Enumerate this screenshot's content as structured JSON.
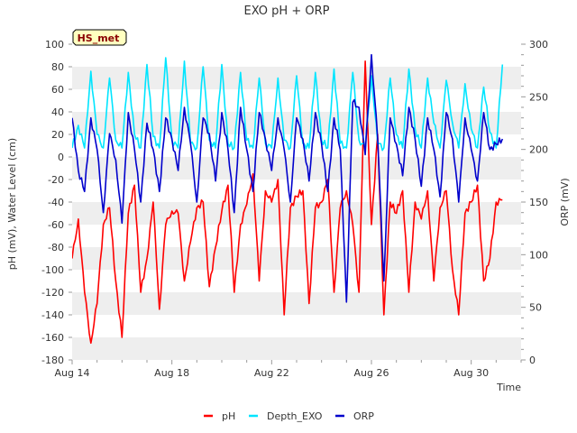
{
  "colors": {
    "pH": "#ff0000",
    "Depth_EXO": "#00e5ff",
    "ORP": "#0000cc",
    "band": "#eeeeee",
    "badge_bg": "#ffffc0"
  },
  "chart_data": {
    "type": "line",
    "title": "EXO pH + ORP",
    "xlabel": "Time",
    "ylabel_left": "pH (mV), Water Level (cm)",
    "ylabel_right": "ORP (mV)",
    "station_label": "HS_met",
    "x_start": "2024-08-14",
    "x_ticks": [
      "Aug 14",
      "Aug 18",
      "Aug 22",
      "Aug 26",
      "Aug 30"
    ],
    "xlim": [
      0,
      18
    ],
    "ylim_left": [
      -180,
      100
    ],
    "ylim_right": [
      0,
      300
    ],
    "yticks_left": [
      -180,
      -160,
      -140,
      -120,
      -100,
      -80,
      -60,
      -40,
      -20,
      0,
      20,
      40,
      60,
      80,
      100
    ],
    "yticks_right": [
      0,
      50,
      100,
      150,
      200,
      250,
      300
    ],
    "legend": {
      "placement": "bottom-center",
      "entries": [
        "pH",
        "Depth_EXO",
        "ORP"
      ]
    },
    "grid": "horizontal bands",
    "series": [
      {
        "name": "pH",
        "axis": "left",
        "x": [
          0.0,
          0.25,
          0.5,
          0.75,
          1.0,
          1.25,
          1.5,
          1.75,
          2.0,
          2.25,
          2.5,
          2.75,
          3.0,
          3.25,
          3.5,
          3.75,
          4.0,
          4.25,
          4.5,
          4.75,
          5.0,
          5.25,
          5.5,
          5.75,
          6.0,
          6.25,
          6.5,
          6.75,
          7.0,
          7.25,
          7.5,
          7.75,
          8.0,
          8.25,
          8.5,
          8.75,
          9.0,
          9.25,
          9.5,
          9.75,
          10.0,
          10.25,
          10.5,
          10.75,
          11.0,
          11.25,
          11.5,
          11.75,
          12.0,
          12.25,
          12.5,
          12.75,
          13.0,
          13.25,
          13.5,
          13.75,
          14.0,
          14.25,
          14.5,
          14.75,
          15.0,
          15.25,
          15.5,
          15.75,
          16.0,
          16.25,
          16.5,
          16.75,
          17.0,
          17.25
        ],
        "values": [
          -90,
          -55,
          -120,
          -165,
          -130,
          -60,
          -45,
          -110,
          -160,
          -50,
          -25,
          -120,
          -90,
          -40,
          -135,
          -60,
          -48,
          -50,
          -110,
          -75,
          -45,
          -40,
          -115,
          -80,
          -48,
          -25,
          -120,
          -60,
          -42,
          -15,
          -110,
          -30,
          -40,
          -20,
          -140,
          -45,
          -35,
          -30,
          -130,
          -45,
          -40,
          -20,
          -120,
          -45,
          -30,
          -60,
          -120,
          85,
          -60,
          20,
          -140,
          -40,
          -50,
          -30,
          -120,
          -40,
          -55,
          -30,
          -110,
          -45,
          -30,
          -100,
          -140,
          -50,
          -40,
          -25,
          -110,
          -90,
          -40,
          -38
        ]
      },
      {
        "name": "Depth_EXO",
        "axis": "left",
        "x": [
          0.0,
          0.25,
          0.5,
          0.75,
          1.0,
          1.25,
          1.5,
          1.75,
          2.0,
          2.25,
          2.5,
          2.75,
          3.0,
          3.25,
          3.5,
          3.75,
          4.0,
          4.25,
          4.5,
          4.75,
          5.0,
          5.25,
          5.5,
          5.75,
          6.0,
          6.25,
          6.5,
          6.75,
          7.0,
          7.25,
          7.5,
          7.75,
          8.0,
          8.25,
          8.5,
          8.75,
          9.0,
          9.25,
          9.5,
          9.75,
          10.0,
          10.25,
          10.5,
          10.75,
          11.0,
          11.25,
          11.5,
          11.75,
          12.0,
          12.25,
          12.5,
          12.75,
          13.0,
          13.25,
          13.5,
          13.75,
          14.0,
          14.25,
          14.5,
          14.75,
          15.0,
          15.25,
          15.5,
          15.75,
          16.0,
          16.25,
          16.5,
          16.75,
          17.0,
          17.25
        ],
        "values": [
          8,
          28,
          8,
          76,
          20,
          8,
          70,
          15,
          8,
          75,
          20,
          8,
          82,
          18,
          8,
          88,
          15,
          8,
          85,
          12,
          8,
          80,
          15,
          8,
          82,
          12,
          8,
          75,
          15,
          8,
          70,
          12,
          8,
          70,
          15,
          8,
          72,
          12,
          8,
          75,
          15,
          8,
          78,
          12,
          8,
          75,
          15,
          8,
          72,
          12,
          8,
          70,
          20,
          8,
          78,
          25,
          8,
          70,
          30,
          8,
          68,
          30,
          8,
          65,
          25,
          8,
          62,
          22,
          8,
          82
        ]
      },
      {
        "name": "ORP",
        "axis": "right",
        "x": [
          0.0,
          0.25,
          0.5,
          0.75,
          1.0,
          1.25,
          1.5,
          1.75,
          2.0,
          2.25,
          2.5,
          2.75,
          3.0,
          3.25,
          3.5,
          3.75,
          4.0,
          4.25,
          4.5,
          4.75,
          5.0,
          5.25,
          5.5,
          5.75,
          6.0,
          6.25,
          6.5,
          6.75,
          7.0,
          7.25,
          7.5,
          7.75,
          8.0,
          8.25,
          8.5,
          8.75,
          9.0,
          9.25,
          9.5,
          9.75,
          10.0,
          10.25,
          10.5,
          10.75,
          11.0,
          11.25,
          11.5,
          11.75,
          12.0,
          12.25,
          12.5,
          12.75,
          13.0,
          13.25,
          13.5,
          13.75,
          14.0,
          14.25,
          14.5,
          14.75,
          15.0,
          15.25,
          15.5,
          15.75,
          16.0,
          16.25,
          16.5,
          16.75,
          17.0,
          17.25
        ],
        "values": [
          230,
          180,
          160,
          230,
          200,
          140,
          215,
          190,
          130,
          235,
          200,
          150,
          225,
          200,
          160,
          230,
          210,
          180,
          240,
          205,
          150,
          230,
          215,
          170,
          235,
          200,
          140,
          240,
          200,
          160,
          235,
          210,
          180,
          230,
          200,
          150,
          230,
          210,
          170,
          235,
          205,
          160,
          230,
          200,
          55,
          245,
          240,
          195,
          290,
          210,
          75,
          230,
          205,
          175,
          240,
          210,
          165,
          230,
          200,
          155,
          235,
          210,
          150,
          230,
          200,
          170,
          235,
          200,
          205,
          210
        ]
      }
    ]
  }
}
